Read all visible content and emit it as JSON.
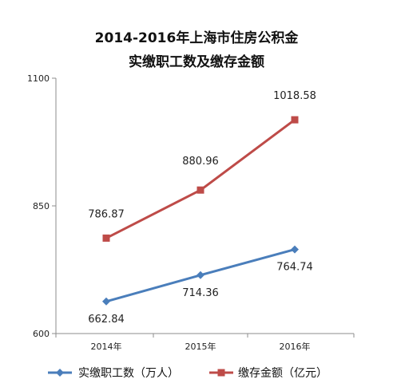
{
  "chart_data": {
    "type": "line",
    "title_lines": [
      "2014-2016年上海市住房公积金",
      "实缴职工数及缴存金额"
    ],
    "categories": [
      "2014年",
      "2015年",
      "2016年"
    ],
    "y_ticks": [
      "600",
      "850",
      "1100"
    ],
    "ylim": [
      600,
      1100
    ],
    "grid": false,
    "legend_position": "bottom",
    "series": [
      {
        "name": "实缴职工数（万人）",
        "values": [
          662.84,
          714.36,
          764.74
        ],
        "labels": [
          "662.84",
          "714.36",
          "764.74"
        ],
        "color": "#4a7ebb",
        "marker": "diamond"
      },
      {
        "name": "缴存金额（亿元）",
        "values": [
          786.87,
          880.96,
          1018.58
        ],
        "labels": [
          "786.87",
          "880.96",
          "1018.58"
        ],
        "color": "#be4b48",
        "marker": "square"
      }
    ]
  }
}
